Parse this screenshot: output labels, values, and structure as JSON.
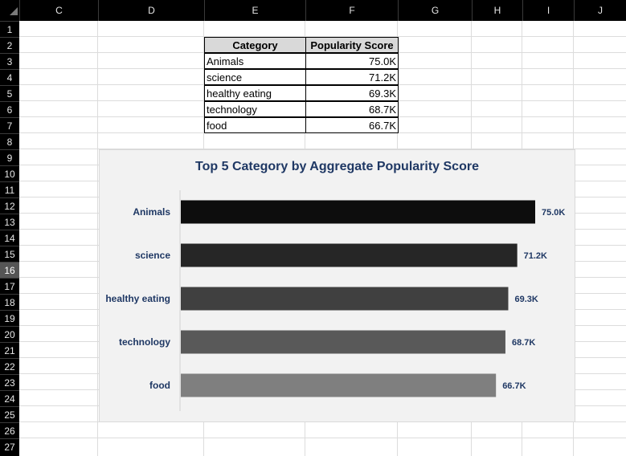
{
  "columns": [
    "C",
    "D",
    "E",
    "F",
    "G",
    "H",
    "I",
    "J"
  ],
  "rows": [
    "1",
    "2",
    "3",
    "4",
    "5",
    "6",
    "7",
    "8",
    "9",
    "10",
    "11",
    "12",
    "13",
    "14",
    "15",
    "16",
    "17",
    "18",
    "19",
    "20",
    "21",
    "22",
    "23",
    "24",
    "25",
    "26",
    "27"
  ],
  "selected_row": "16",
  "table": {
    "headers": [
      "Category",
      "Popularity Score"
    ],
    "rows": [
      [
        "Animals",
        "75.0K"
      ],
      [
        "science",
        "71.2K"
      ],
      [
        "healthy eating",
        "69.3K"
      ],
      [
        "technology",
        "68.7K"
      ],
      [
        "food",
        "66.7K"
      ]
    ]
  },
  "chart_data": {
    "type": "bar",
    "orientation": "horizontal",
    "title": "Top 5 Category by Aggregate Popularity Score",
    "xlabel": "",
    "ylabel": "",
    "categories": [
      "Animals",
      "science",
      "healthy eating",
      "technology",
      "food"
    ],
    "values": [
      75.0,
      71.2,
      69.3,
      68.7,
      66.7
    ],
    "value_unit": "K",
    "data_labels": [
      "75.0K",
      "71.2K",
      "69.3K",
      "68.7K",
      "66.7K"
    ],
    "bar_colors": [
      "#0d0d0d",
      "#262626",
      "#404040",
      "#595959",
      "#7f7f7f"
    ],
    "title_color": "#1f3864",
    "label_color": "#1f3864",
    "background": "#f2f2f2",
    "grid": false,
    "legend": "none"
  }
}
